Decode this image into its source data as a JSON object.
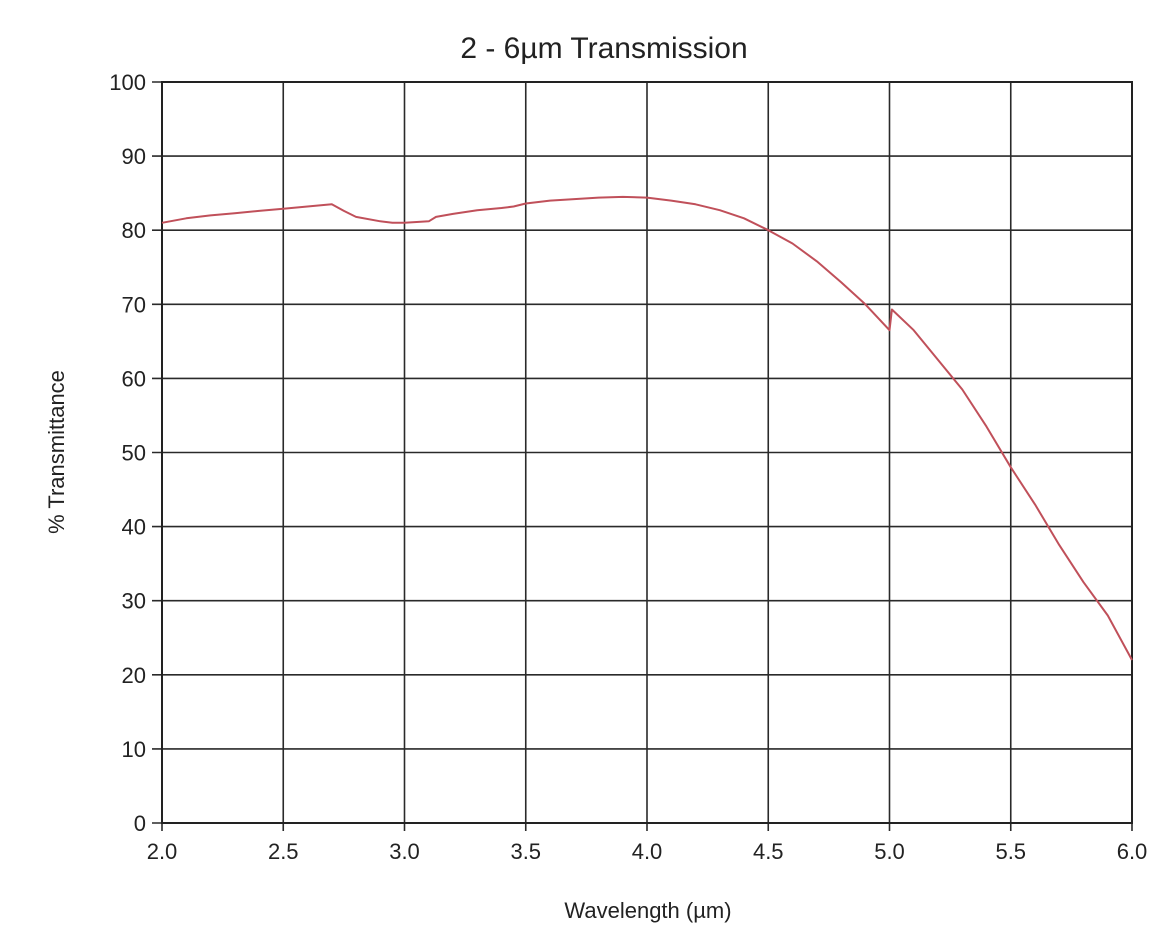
{
  "chart_data": {
    "type": "line",
    "title": "2 - 6µm Transmission",
    "xlabel": "Wavelength (µm)",
    "ylabel": "% Transmittance",
    "xlim": [
      2.0,
      6.0
    ],
    "ylim": [
      0,
      100
    ],
    "x_ticks": [
      "2.0",
      "2.5",
      "3.0",
      "3.5",
      "4.0",
      "4.5",
      "5.0",
      "5.5",
      "6.0"
    ],
    "y_ticks": [
      "0",
      "10",
      "20",
      "30",
      "40",
      "50",
      "60",
      "70",
      "80",
      "90",
      "100"
    ],
    "grid": true,
    "legend": "none",
    "series": [
      {
        "color": "#c0505a",
        "points": [
          [
            2.0,
            81.0
          ],
          [
            2.1,
            81.6
          ],
          [
            2.2,
            82.0
          ],
          [
            2.3,
            82.3
          ],
          [
            2.4,
            82.6
          ],
          [
            2.5,
            82.9
          ],
          [
            2.6,
            83.2
          ],
          [
            2.7,
            83.5
          ],
          [
            2.75,
            82.6
          ],
          [
            2.8,
            81.8
          ],
          [
            2.9,
            81.2
          ],
          [
            2.95,
            81.0
          ],
          [
            3.0,
            81.0
          ],
          [
            3.1,
            81.2
          ],
          [
            3.13,
            81.8
          ],
          [
            3.2,
            82.2
          ],
          [
            3.3,
            82.7
          ],
          [
            3.4,
            83.0
          ],
          [
            3.45,
            83.2
          ],
          [
            3.5,
            83.6
          ],
          [
            3.6,
            84.0
          ],
          [
            3.7,
            84.2
          ],
          [
            3.8,
            84.4
          ],
          [
            3.9,
            84.5
          ],
          [
            4.0,
            84.4
          ],
          [
            4.1,
            84.0
          ],
          [
            4.2,
            83.5
          ],
          [
            4.3,
            82.7
          ],
          [
            4.4,
            81.6
          ],
          [
            4.5,
            80.0
          ],
          [
            4.6,
            78.2
          ],
          [
            4.7,
            75.8
          ],
          [
            4.8,
            73.0
          ],
          [
            4.9,
            70.0
          ],
          [
            5.0,
            66.5
          ],
          [
            5.01,
            69.3
          ],
          [
            5.1,
            66.5
          ],
          [
            5.2,
            62.5
          ],
          [
            5.3,
            58.5
          ],
          [
            5.4,
            53.5
          ],
          [
            5.5,
            48.0
          ],
          [
            5.6,
            43.0
          ],
          [
            5.7,
            37.5
          ],
          [
            5.8,
            32.5
          ],
          [
            5.9,
            28.0
          ],
          [
            6.0,
            22.0
          ]
        ]
      }
    ]
  }
}
